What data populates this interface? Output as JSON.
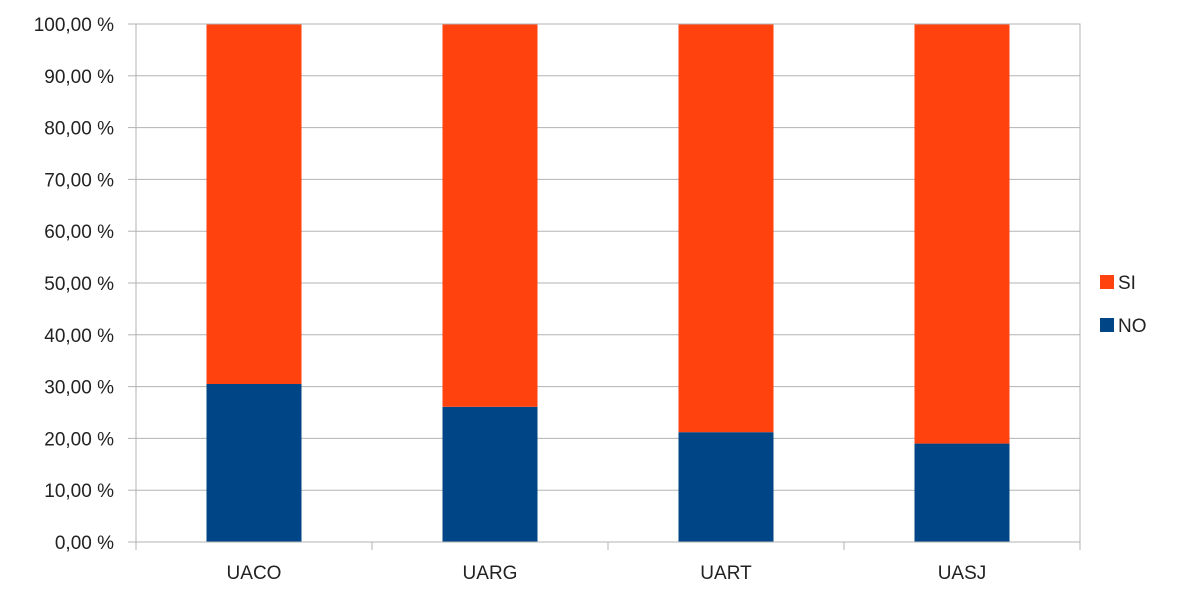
{
  "chart_data": {
    "type": "bar",
    "stacked": true,
    "categories": [
      "UACO",
      "UARG",
      "UART",
      "UASJ"
    ],
    "series": [
      {
        "name": "NO",
        "values": [
          30.5,
          26.1,
          21.2,
          19.0
        ],
        "color": "#004586"
      },
      {
        "name": "SI",
        "values": [
          69.5,
          73.9,
          78.8,
          81.0
        ],
        "color": "#ff420e"
      }
    ],
    "ylim": [
      0,
      100
    ],
    "y_ticks": [
      "0,00 %",
      "10,00 %",
      "20,00 %",
      "30,00 %",
      "40,00 %",
      "50,00 %",
      "60,00 %",
      "70,00 %",
      "80,00 %",
      "90,00 %",
      "100,00 %"
    ],
    "y_tick_values": [
      0,
      10,
      20,
      30,
      40,
      50,
      60,
      70,
      80,
      90,
      100
    ],
    "grid": true,
    "legend_position": "right",
    "legend_order": [
      "SI",
      "NO"
    ],
    "xlabel": "",
    "ylabel": "",
    "title": ""
  }
}
